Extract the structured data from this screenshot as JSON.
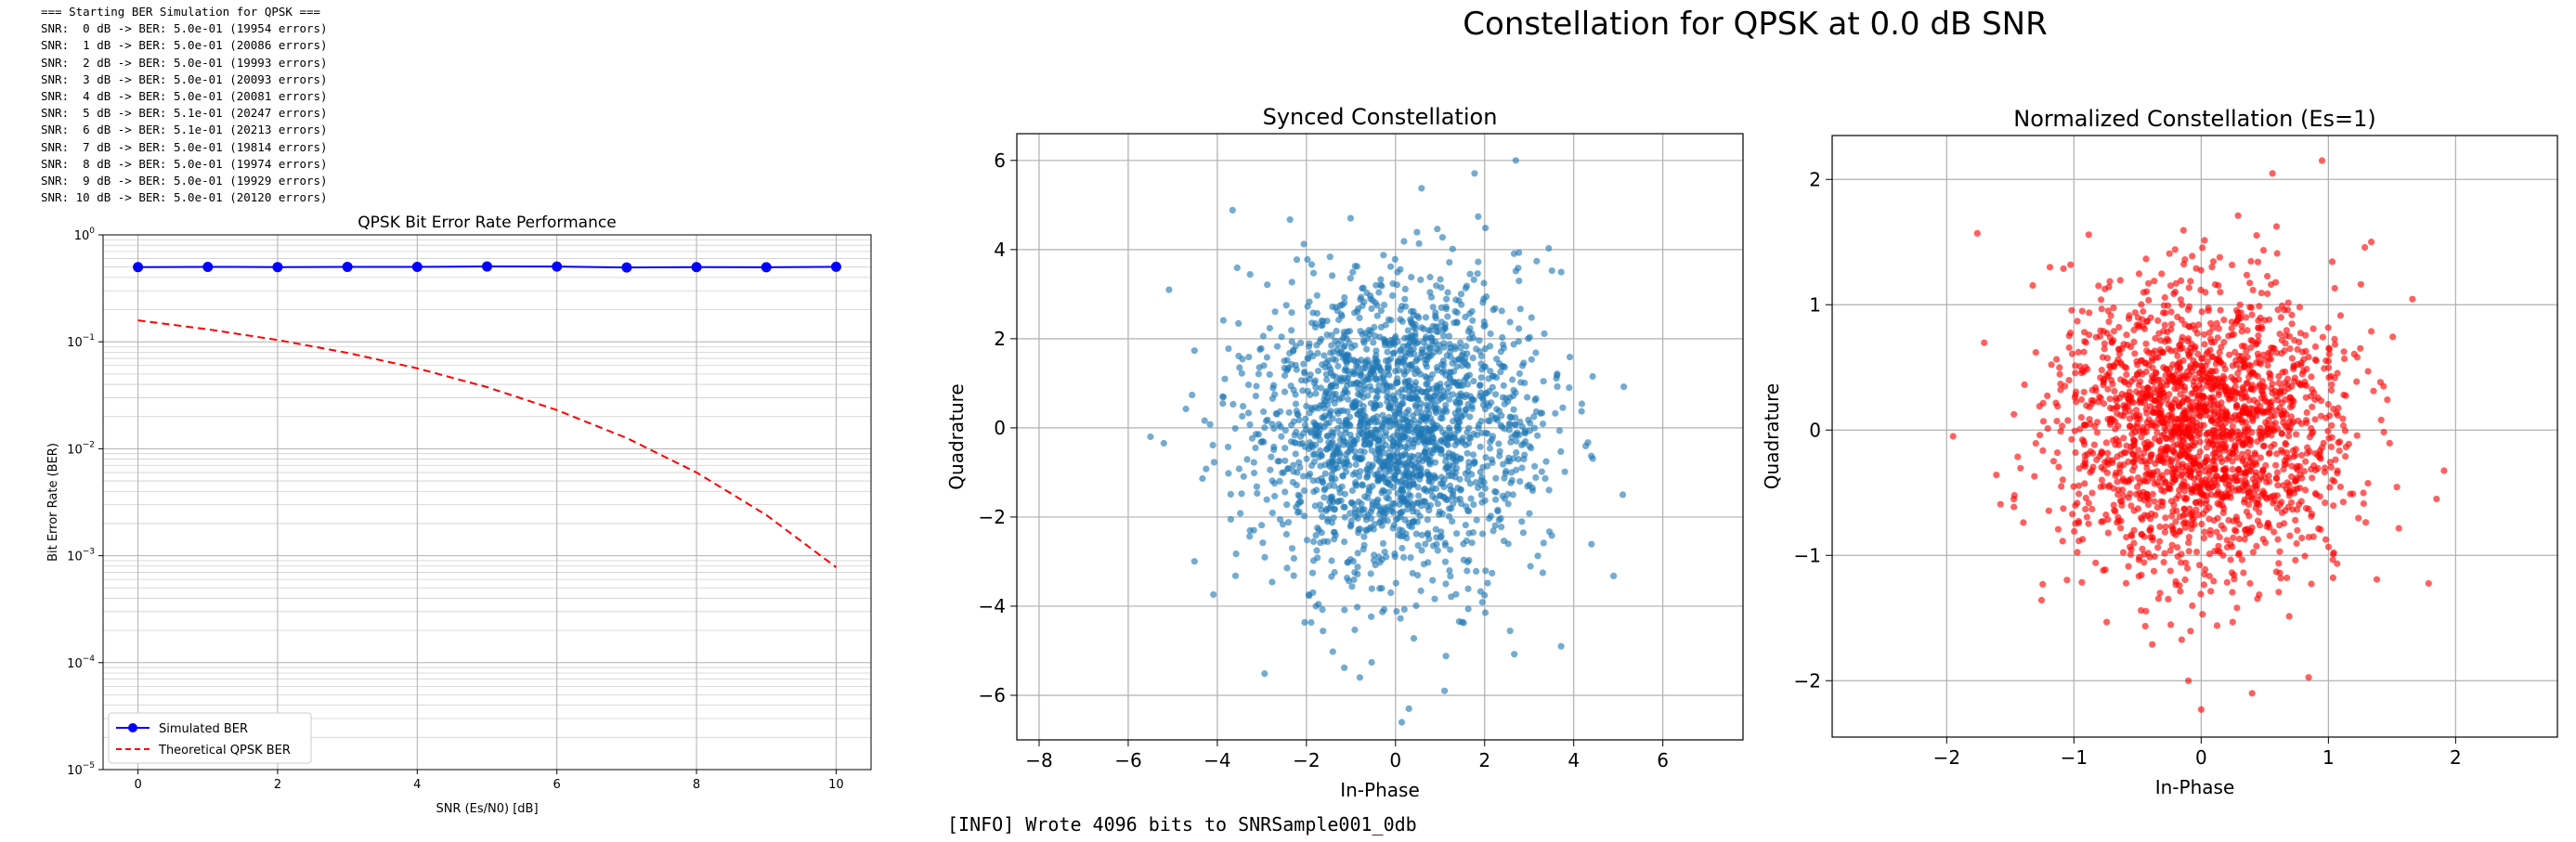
{
  "terminal": {
    "log_lines": [
      "=== Starting BER Simulation for QPSK ===",
      "SNR:  0 dB -> BER: 5.0e-01 (19954 errors)",
      "SNR:  1 dB -> BER: 5.0e-01 (20086 errors)",
      "SNR:  2 dB -> BER: 5.0e-01 (19993 errors)",
      "SNR:  3 dB -> BER: 5.0e-01 (20093 errors)",
      "SNR:  4 dB -> BER: 5.0e-01 (20081 errors)",
      "SNR:  5 dB -> BER: 5.1e-01 (20247 errors)",
      "SNR:  6 dB -> BER: 5.1e-01 (20213 errors)",
      "SNR:  7 dB -> BER: 5.0e-01 (19814 errors)",
      "SNR:  8 dB -> BER: 5.0e-01 (19974 errors)",
      "SNR:  9 dB -> BER: 5.0e-01 (19929 errors)",
      "SNR: 10 dB -> BER: 5.0e-01 (20120 errors)"
    ],
    "info_line": "[INFO] Wrote 4096 bits to SNRSample001_0db"
  },
  "figure": {
    "suptitle": "Constellation for QPSK at 0.0 dB SNR"
  },
  "colors": {
    "simulated": "#0000ff",
    "theoretical": "#ff0000",
    "synced_points": "#1f77b4",
    "normalized_points": "#ff0000",
    "grid": "#b0b0b0"
  },
  "chart_data": [
    {
      "type": "line",
      "title": "QPSK Bit Error Rate Performance",
      "xlabel": "SNR (Es/N0) [dB]",
      "ylabel": "Bit Error Rate (BER)",
      "yscale": "log",
      "xlim": [
        -0.5,
        10.5
      ],
      "ylim": [
        1e-05,
        1
      ],
      "xticks": [
        0,
        2,
        4,
        6,
        8,
        10
      ],
      "yticks": [
        1e-05,
        0.0001,
        0.001,
        0.01,
        0.1,
        1
      ],
      "ytick_labels": [
        {
          "base": "10",
          "exp": "−5"
        },
        {
          "base": "10",
          "exp": "−4"
        },
        {
          "base": "10",
          "exp": "−3"
        },
        {
          "base": "10",
          "exp": "−2"
        },
        {
          "base": "10",
          "exp": "−1"
        },
        {
          "base": "10",
          "exp": "0"
        }
      ],
      "grid": true,
      "legend_position": "lower-left",
      "x": [
        0,
        1,
        2,
        3,
        4,
        5,
        6,
        7,
        8,
        9,
        10
      ],
      "series": [
        {
          "name": "Simulated BER",
          "style": "solid-marker",
          "values": [
            0.4989,
            0.5022,
            0.4998,
            0.5023,
            0.502,
            0.5062,
            0.5053,
            0.4954,
            0.4994,
            0.4982,
            0.503
          ]
        },
        {
          "name": "Theoretical QPSK BER",
          "style": "dashed",
          "values": [
            0.1587,
            0.1309,
            0.104,
            0.0789,
            0.0565,
            0.0377,
            0.023,
            0.0126,
            0.006,
            0.0024,
            0.00078
          ]
        }
      ]
    },
    {
      "type": "scatter",
      "title": "Synced Constellation",
      "xlabel": "In-Phase",
      "ylabel": "Quadrature",
      "xlim": [
        -8.5,
        7.8
      ],
      "ylim": [
        -7.0,
        6.6
      ],
      "xticks": [
        -8,
        -6,
        -4,
        -2,
        0,
        2,
        4,
        6
      ],
      "yticks": [
        -6,
        -4,
        -2,
        0,
        2,
        4,
        6
      ],
      "grid": true,
      "point_count": 2048,
      "spread_std": 1.6,
      "notable_points": [
        [
          2.7,
          6.0
        ],
        [
          0.3,
          -6.3
        ],
        [
          1.1,
          -5.9
        ],
        [
          -0.8,
          -5.6
        ],
        [
          -5.5,
          -0.2
        ],
        [
          5.1,
          -1.5
        ]
      ]
    },
    {
      "type": "scatter",
      "title": "Normalized Constellation (Es=1)",
      "xlabel": "In-Phase",
      "ylabel": "Quadrature",
      "xlim": [
        -2.9,
        2.8
      ],
      "ylim": [
        -2.45,
        2.35
      ],
      "xticks": [
        -2,
        -1,
        0,
        1,
        2
      ],
      "yticks": [
        -2,
        -1,
        0,
        1,
        2
      ],
      "grid": true,
      "point_count": 2048,
      "spread_std": 0.56,
      "notable_points": [
        [
          0.95,
          2.15
        ],
        [
          0.0,
          -2.23
        ],
        [
          -0.1,
          -2.0
        ],
        [
          0.4,
          -2.1
        ],
        [
          -1.95,
          -0.05
        ],
        [
          1.85,
          -0.55
        ]
      ]
    }
  ]
}
